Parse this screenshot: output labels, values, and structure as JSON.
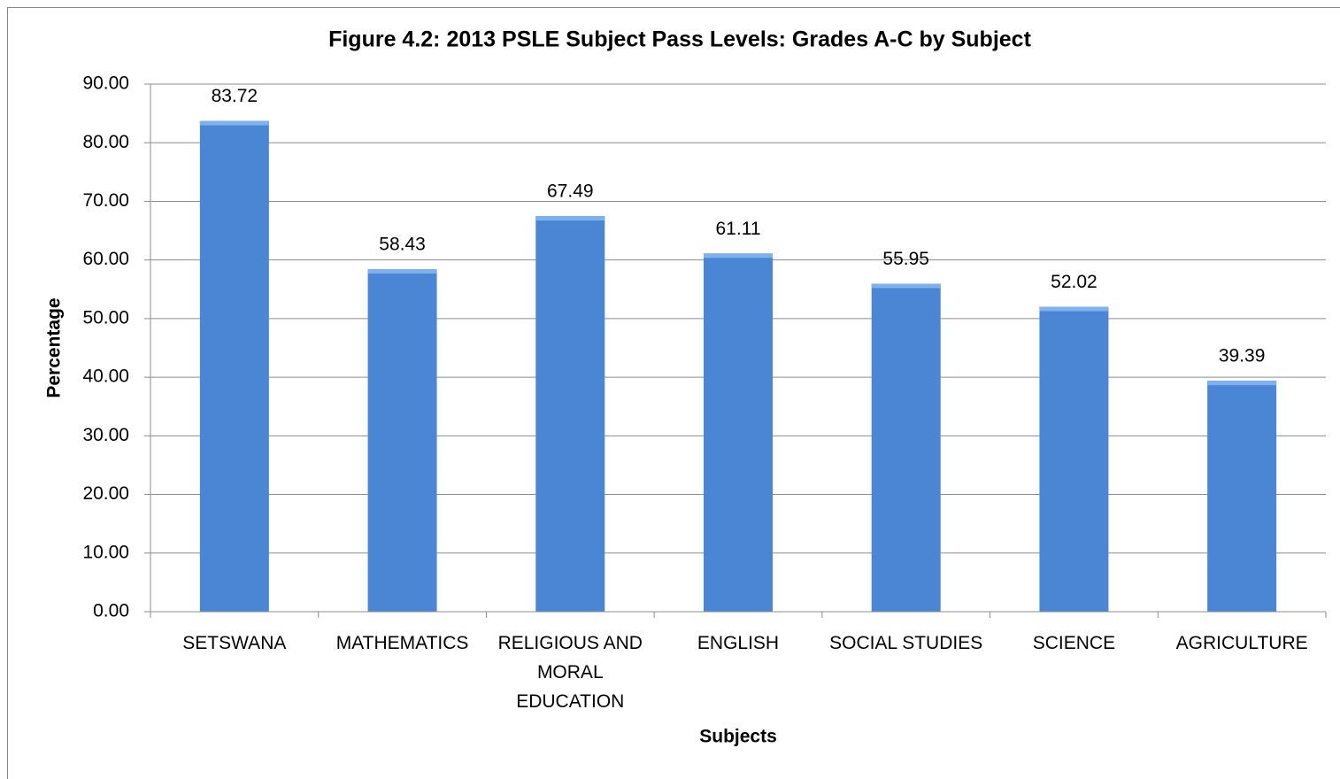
{
  "chart_data": {
    "type": "bar",
    "title": "Figure 4.2: 2013 PSLE Subject Pass Levels: Grades A-C by Subject",
    "x_label": "Subjects",
    "y_label": "Percentage",
    "categories": [
      "SETSWANA",
      "MATHEMATICS",
      "RELIGIOUS AND MORAL EDUCATION",
      "ENGLISH",
      "SOCIAL STUDIES",
      "SCIENCE",
      "AGRICULTURE"
    ],
    "values": [
      83.72,
      58.43,
      67.49,
      61.11,
      55.95,
      52.02,
      39.39
    ],
    "color": "#4a86d4",
    "ylim": [
      0,
      90
    ],
    "yticks": [
      {
        "value": 0,
        "label": "0.00"
      },
      {
        "value": 10,
        "label": "10.00"
      },
      {
        "value": 20,
        "label": "20.00"
      },
      {
        "value": 30,
        "label": "30.00"
      },
      {
        "value": 40,
        "label": "40.00"
      },
      {
        "value": 50,
        "label": "50.00"
      },
      {
        "value": 60,
        "label": "60.00"
      },
      {
        "value": 70,
        "label": "70.00"
      },
      {
        "value": 80,
        "label": "80.00"
      },
      {
        "value": 90,
        "label": "90.00"
      }
    ],
    "grid": true
  }
}
